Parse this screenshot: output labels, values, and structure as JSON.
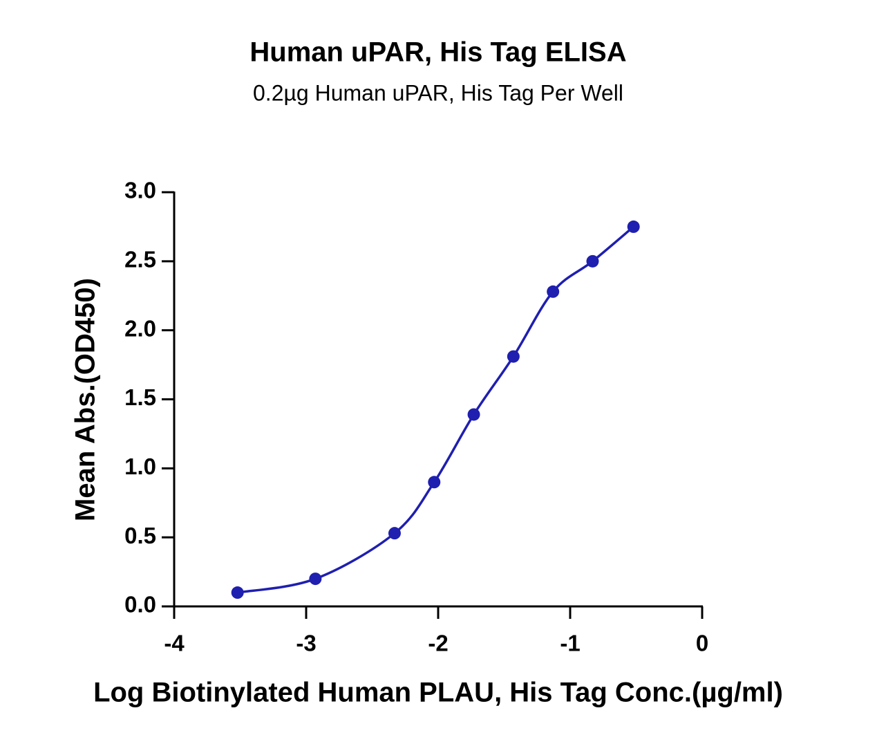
{
  "chart_data": {
    "type": "scatter",
    "title": "Human uPAR, His Tag ELISA",
    "subtitle": "0.2µg Human uPAR, His Tag Per Well",
    "x_label": "Log Biotinylated Human PLAU, His Tag Conc.(µg/ml)",
    "y_label": "Mean Abs.(OD450)",
    "xlim": [
      -4,
      0
    ],
    "xticks": [
      -4,
      -3,
      -2,
      -1,
      0
    ],
    "ylim": [
      0,
      3
    ],
    "yticks": [
      {
        "value": 0,
        "label": "0.0"
      },
      0.5,
      {
        "value": 1,
        "label": "1.0"
      },
      1.5,
      {
        "value": 2,
        "label": "2.0"
      },
      2.5,
      {
        "value": 3,
        "label": "3.0"
      }
    ],
    "grid": false,
    "series": [
      {
        "name": "Human uPAR, His Tag",
        "color": "#1f1fb0",
        "x": [
          -3.52,
          -2.93,
          -2.33,
          -2.03,
          -1.73,
          -1.43,
          -1.13,
          -0.83,
          -0.52
        ],
        "values": [
          0.1,
          0.2,
          0.53,
          0.9,
          1.39,
          1.81,
          2.28,
          2.5,
          2.75
        ]
      }
    ]
  }
}
